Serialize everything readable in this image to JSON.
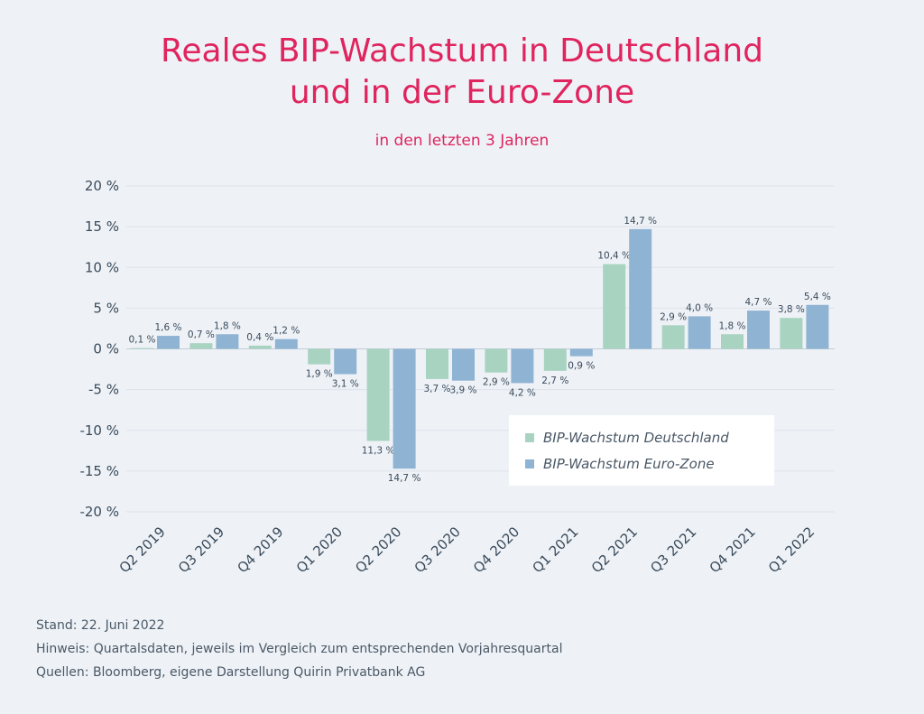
{
  "title_line1": "Reales BIP-Wachstum in Deutschland",
  "title_line2": "und in der Euro-Zone",
  "subtitle": "in den letzten 3 Jahren",
  "colors": {
    "de": "#a9d3c1",
    "ez": "#8fb3d3",
    "title": "#e0245e"
  },
  "chart_data": {
    "type": "bar",
    "categories": [
      "Q2 2019",
      "Q3 2019",
      "Q4 2019",
      "Q1 2020",
      "Q2 2020",
      "Q3 2020",
      "Q4 2020",
      "Q1 2021",
      "Q2 2021",
      "Q3 2021",
      "Q4 2021",
      "Q1 2022"
    ],
    "series": [
      {
        "name": "BIP-Wachstum Deutschland",
        "values": [
          0.1,
          0.7,
          0.4,
          -1.9,
          -11.3,
          -3.7,
          -2.9,
          -2.7,
          10.4,
          2.9,
          1.8,
          3.8
        ],
        "labels": [
          "0,1 %",
          "0,7 %",
          "0,4 %",
          "1,9 %",
          "11,3 %",
          "3,7 %",
          "2,9 %",
          "2,7 %",
          "10,4 %",
          "2,9 %",
          "1,8 %",
          "3,8 %"
        ]
      },
      {
        "name": "BIP-Wachstum Euro-Zone",
        "values": [
          1.6,
          1.8,
          1.2,
          -3.1,
          -14.7,
          -3.9,
          -4.2,
          -0.9,
          14.7,
          4.0,
          4.7,
          5.4
        ],
        "labels": [
          "1,6 %",
          "1,8 %",
          "1,2 %",
          "3,1 %",
          "14,7 %",
          "3,9 %",
          "4,2 %",
          "0,9 %",
          "14,7 %",
          "4,0 %",
          "4,7 %",
          "5,4 %"
        ]
      }
    ],
    "ylim": [
      -20,
      20
    ],
    "yticks": [
      20,
      15,
      10,
      5,
      0,
      -5,
      -10,
      -15,
      -20
    ],
    "ytick_labels": [
      "20 %",
      "15 %",
      "10 %",
      "5 %",
      "0 %",
      "-5 %",
      "-10 %",
      "-15 %",
      "-20 %"
    ],
    "grid": true,
    "legend_position": "lower-right"
  },
  "footer": {
    "stand": "Stand: 22. Juni 2022",
    "hinweis": "Hinweis: Quartalsdaten, jeweils im Vergleich zum entsprechenden Vorjahresquartal",
    "quellen": "Quellen: Bloomberg, eigene Darstellung Quirin Privatbank AG"
  }
}
